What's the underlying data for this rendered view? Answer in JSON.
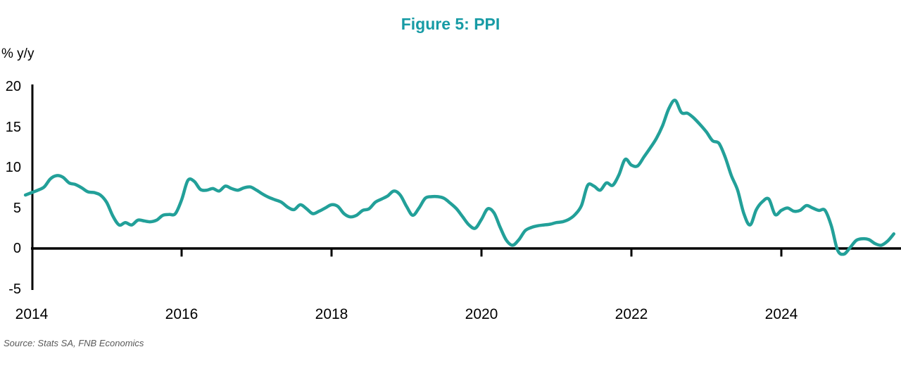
{
  "figure": {
    "title": "Figure 5: PPI",
    "y_axis_unit": "% y/y",
    "source_note": "Source: Stats SA, FNB Economics"
  },
  "colors": {
    "title": "#179BA5",
    "line": "#22A099",
    "axis": "#000000",
    "source_text": "#595959"
  },
  "chart_data": {
    "type": "line",
    "title": "Figure 5: PPI",
    "ylabel": "% y/y",
    "xlabel": "",
    "ylim": [
      -5,
      20
    ],
    "y_ticks": [
      20,
      15,
      10,
      5,
      0,
      -5
    ],
    "x_tick_labels": [
      "2014",
      "2016",
      "2018",
      "2020",
      "2022",
      "2024"
    ],
    "x_start": "2013-12",
    "x_end": "2025-07",
    "frequency": "monthly",
    "grid": false,
    "legend": "none",
    "series": [
      {
        "name": "PPI (% y/y)",
        "color": "#22A099",
        "values": [
          6.6,
          6.9,
          7.2,
          7.6,
          8.6,
          9.0,
          8.8,
          8.1,
          7.9,
          7.5,
          7.0,
          6.9,
          6.6,
          5.7,
          4.0,
          2.9,
          3.2,
          2.9,
          3.5,
          3.4,
          3.3,
          3.5,
          4.1,
          4.2,
          4.3,
          6.0,
          8.4,
          8.3,
          7.3,
          7.2,
          7.4,
          7.1,
          7.7,
          7.4,
          7.2,
          7.5,
          7.6,
          7.2,
          6.7,
          6.3,
          6.0,
          5.7,
          5.1,
          4.8,
          5.4,
          4.9,
          4.3,
          4.6,
          5.0,
          5.4,
          5.2,
          4.3,
          3.9,
          4.1,
          4.7,
          4.9,
          5.7,
          6.1,
          6.5,
          7.1,
          6.6,
          5.2,
          4.1,
          5.0,
          6.2,
          6.4,
          6.4,
          6.2,
          5.6,
          4.9,
          3.9,
          2.9,
          2.5,
          3.6,
          4.9,
          4.4,
          2.6,
          1.0,
          0.4,
          1.1,
          2.2,
          2.6,
          2.8,
          2.9,
          3.0,
          3.2,
          3.3,
          3.6,
          4.2,
          5.3,
          7.8,
          7.7,
          7.2,
          8.1,
          7.8,
          9.1,
          11.0,
          10.3,
          10.2,
          11.3,
          12.4,
          13.6,
          15.2,
          17.3,
          18.3,
          16.8,
          16.7,
          16.1,
          15.3,
          14.4,
          13.3,
          13.0,
          11.3,
          9.0,
          7.2,
          4.3,
          2.9,
          4.8,
          5.8,
          6.1,
          4.2,
          4.7,
          5.0,
          4.6,
          4.7,
          5.3,
          5.0,
          4.7,
          4.7,
          2.8,
          -0.2,
          -0.7,
          0.1,
          1.0,
          1.2,
          1.1,
          0.6,
          0.4,
          0.9,
          1.8
        ]
      }
    ]
  }
}
